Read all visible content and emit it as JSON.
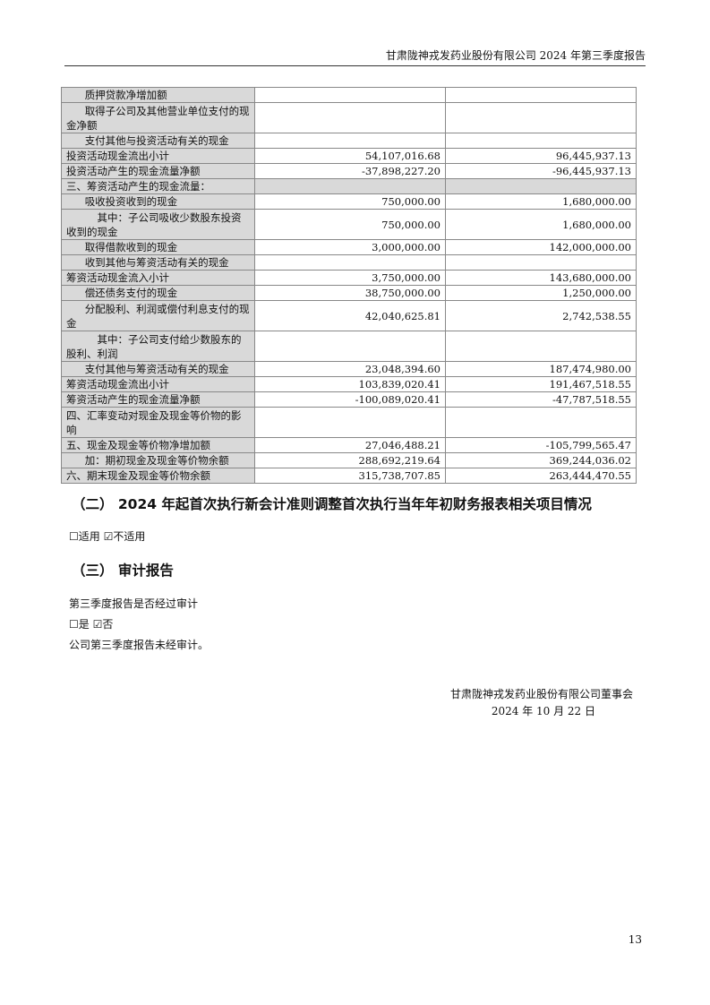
{
  "header": "甘肃陇神戎发药业股份有限公司 2024 年第三季度报告",
  "rows": [
    {
      "label": "质押贷款净增加额",
      "indent": 1,
      "c1": "",
      "c2": ""
    },
    {
      "label": "取得子公司及其他营业单位支付的现金净额",
      "indent": 1,
      "tall": true,
      "c1": "",
      "c2": ""
    },
    {
      "label": "支付其他与投资活动有关的现金",
      "indent": 1,
      "c1": "",
      "c2": ""
    },
    {
      "label": "投资活动现金流出小计",
      "indent": 0,
      "c1": "54,107,016.68",
      "c2": "96,445,937.13"
    },
    {
      "label": "投资活动产生的现金流量净额",
      "indent": 0,
      "c1": "-37,898,227.20",
      "c2": "-96,445,937.13"
    },
    {
      "label": "三、筹资活动产生的现金流量：",
      "indent": 0,
      "section": true,
      "c1": "",
      "c2": ""
    },
    {
      "label": "吸收投资收到的现金",
      "indent": 1,
      "c1": "750,000.00",
      "c2": "1,680,000.00"
    },
    {
      "label": "其中：子公司吸收少数股东投资收到的现金",
      "indent": 2,
      "tall": true,
      "c1": "750,000.00",
      "c2": "1,680,000.00"
    },
    {
      "label": "取得借款收到的现金",
      "indent": 1,
      "c1": "3,000,000.00",
      "c2": "142,000,000.00"
    },
    {
      "label": "收到其他与筹资活动有关的现金",
      "indent": 1,
      "c1": "",
      "c2": ""
    },
    {
      "label": "筹资活动现金流入小计",
      "indent": 0,
      "c1": "3,750,000.00",
      "c2": "143,680,000.00"
    },
    {
      "label": "偿还债务支付的现金",
      "indent": 1,
      "c1": "38,750,000.00",
      "c2": "1,250,000.00"
    },
    {
      "label": "分配股利、利润或偿付利息支付的现金",
      "indent": 1,
      "tall": true,
      "c1": "42,040,625.81",
      "c2": "2,742,538.55"
    },
    {
      "label": "其中：子公司支付给少数股东的股利、利润",
      "indent": 2,
      "tall": true,
      "c1": "",
      "c2": ""
    },
    {
      "label": "支付其他与筹资活动有关的现金",
      "indent": 1,
      "c1": "23,048,394.60",
      "c2": "187,474,980.00"
    },
    {
      "label": "筹资活动现金流出小计",
      "indent": 0,
      "c1": "103,839,020.41",
      "c2": "191,467,518.55"
    },
    {
      "label": "筹资活动产生的现金流量净额",
      "indent": 0,
      "c1": "-100,089,020.41",
      "c2": "-47,787,518.55"
    },
    {
      "label": "四、汇率变动对现金及现金等价物的影响",
      "indent": 0,
      "tall": true,
      "c1": "",
      "c2": ""
    },
    {
      "label": "五、现金及现金等价物净增加额",
      "indent": 0,
      "c1": "27,046,488.21",
      "c2": "-105,799,565.47"
    },
    {
      "label": "加：期初现金及现金等价物余额",
      "indent": 1,
      "c1": "288,692,219.64",
      "c2": "369,244,036.02"
    },
    {
      "label": "六、期末现金及现金等价物余额",
      "indent": 0,
      "c1": "315,738,707.85",
      "c2": "263,444,470.55"
    }
  ],
  "section2": {
    "title": "（二） 2024 年起首次执行新会计准则调整首次执行当年年初财务报表相关项目情况",
    "options": "☐适用 ☑不适用"
  },
  "section3": {
    "title": "（三） 审计报告",
    "question": "第三季度报告是否经过审计",
    "options": "☐是 ☑否",
    "statement": "公司第三季度报告未经审计。"
  },
  "signature": {
    "company": "甘肃陇神戎发药业股份有限公司董事会",
    "date": "2024 年 10 月 22 日"
  },
  "page_number": "13"
}
